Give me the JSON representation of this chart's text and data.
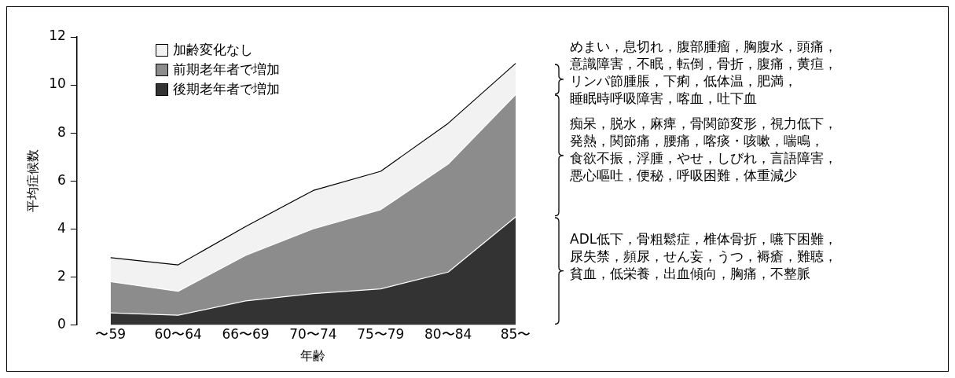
{
  "chart_data": {
    "type": "area",
    "stacked": true,
    "xlabel": "年齢",
    "ylabel": "平均症候数",
    "categories": [
      "〜59",
      "60〜64",
      "66〜69",
      "70〜74",
      "75〜79",
      "80〜84",
      "85〜"
    ],
    "series": [
      {
        "name": "後期老年者で増加",
        "color": "#333333",
        "values": [
          0.5,
          0.4,
          1.0,
          1.3,
          1.5,
          2.2,
          4.5
        ]
      },
      {
        "name": "前期老年者で増加",
        "color": "#8c8c8c",
        "values": [
          1.3,
          1.0,
          1.9,
          2.7,
          3.3,
          4.5,
          5.1
        ]
      },
      {
        "name": "加齢変化なし",
        "color": "#f2f2f2",
        "values": [
          1.0,
          1.1,
          1.2,
          1.6,
          1.6,
          1.7,
          1.3
        ]
      }
    ],
    "ylim": [
      0,
      12
    ],
    "yticks": [
      0,
      2,
      4,
      6,
      8,
      10,
      12
    ],
    "legend": "top left",
    "annotations": [
      "めまい，息切れ，腹部腫瘤，胸腹水，頭痛，意識障害，不眠，転倒，骨折，腹痛，黄疸，リンパ節腫脹，下痢，低体温，肥満，睡眠時呼吸障害，喀血，吐下血",
      "痴呆，脱水，麻痺，骨関節変形，視力低下，発熱，関節痛，腰痛，喀痰・咳嗽，喘鳴，食欲不振，浮腫，やせ，しびれ，言語障害，悪心嘔吐，便秘，呼吸困難，体重減少",
      "ADL低下，骨粗鬆症，椎体骨折，嚥下困難，尿失禁，頻尿，せん妄，うつ，褥瘡，難聴，貧血，低栄養，出血傾向，胸痛，不整脈"
    ]
  }
}
